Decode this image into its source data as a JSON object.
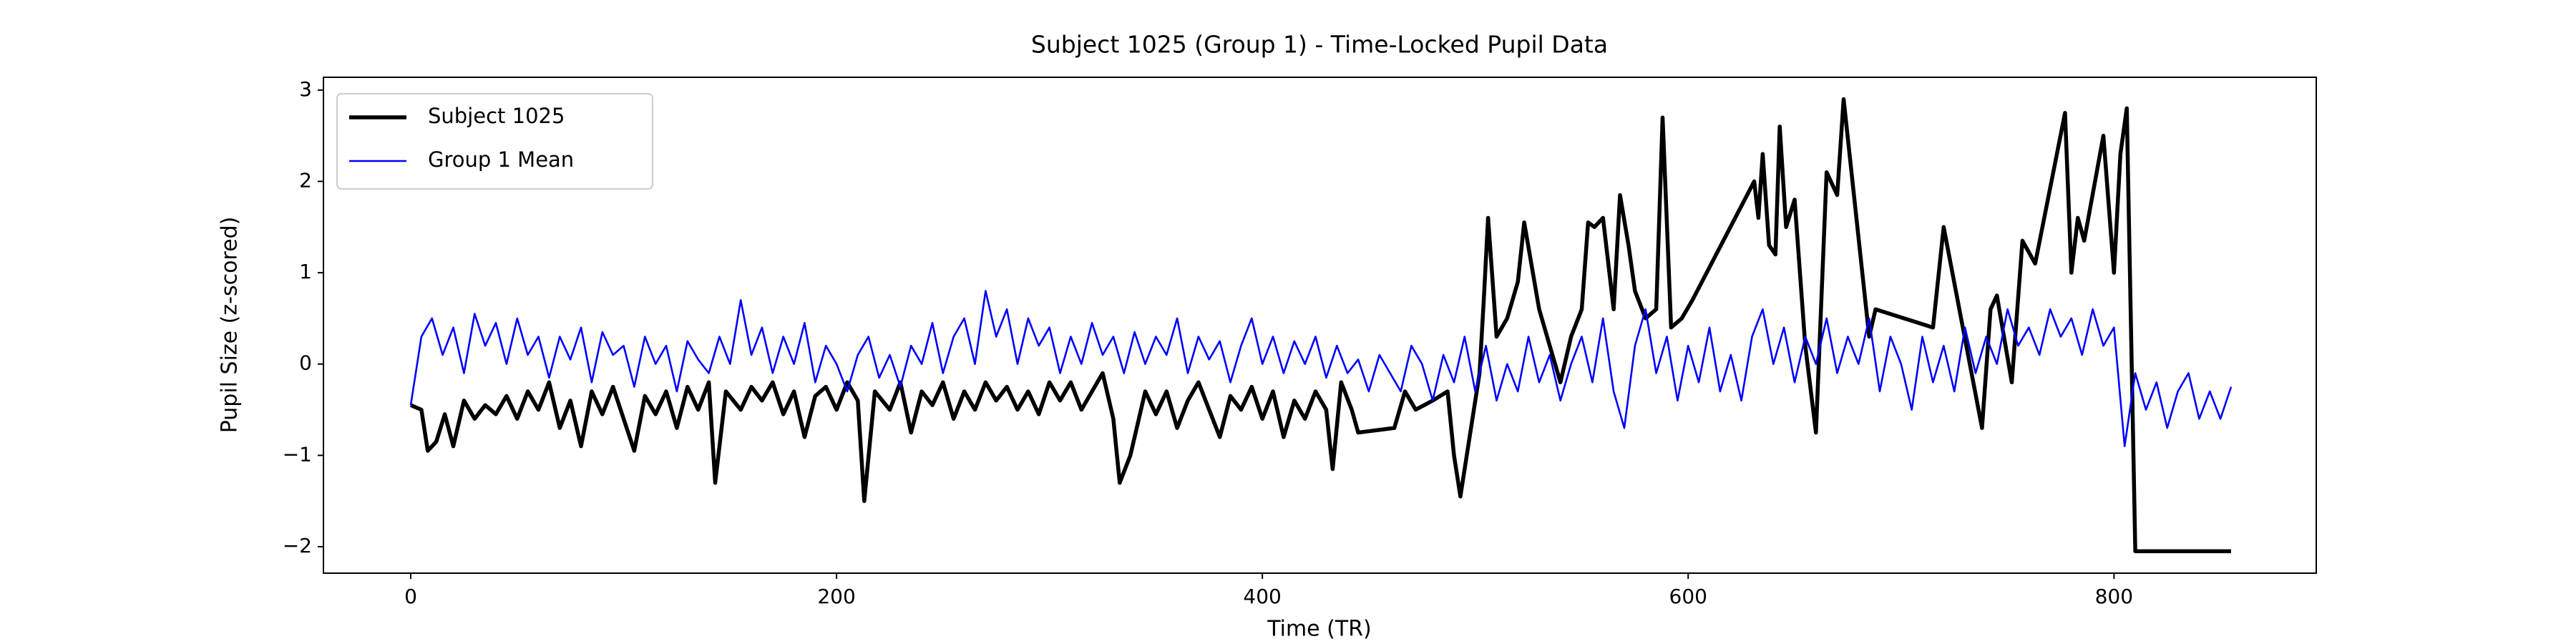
{
  "chart_data": {
    "type": "line",
    "title": "Subject 1025 (Group 1) - Time-Locked Pupil Data",
    "x_label": "Time (TR)",
    "y_label": "Pupil Size (z-scored)",
    "xlim": [
      -41,
      895
    ],
    "ylim": [
      -2.29,
      3.14
    ],
    "xticks": [
      0,
      200,
      400,
      600,
      800
    ],
    "yticks": [
      {
        "value": -2,
        "label": "−2"
      },
      {
        "value": -1,
        "label": "−1"
      },
      0,
      1,
      2,
      3
    ],
    "grid": false,
    "legend": "upper left",
    "series": [
      {
        "name": "Subject 1025",
        "color": "#000000",
        "x": [
          0,
          5,
          8,
          12,
          16,
          20,
          25,
          30,
          35,
          40,
          45,
          50,
          55,
          60,
          65,
          70,
          75,
          80,
          85,
          90,
          95,
          100,
          105,
          110,
          115,
          120,
          125,
          130,
          135,
          140,
          143,
          148,
          155,
          160,
          165,
          170,
          175,
          180,
          185,
          190,
          195,
          200,
          205,
          210,
          213,
          218,
          225,
          230,
          235,
          240,
          245,
          250,
          255,
          260,
          265,
          270,
          275,
          280,
          285,
          290,
          295,
          300,
          305,
          310,
          315,
          320,
          325,
          330,
          333,
          338,
          345,
          350,
          355,
          360,
          365,
          370,
          375,
          380,
          385,
          390,
          395,
          400,
          405,
          410,
          415,
          420,
          425,
          430,
          433,
          437,
          442,
          445,
          462,
          467,
          472,
          480,
          487,
          490,
          493,
          502,
          504,
          506,
          510,
          515,
          520,
          523,
          530,
          535,
          540,
          545,
          550,
          553,
          556,
          560,
          565,
          568,
          572,
          575,
          580,
          585,
          588,
          592,
          597,
          602,
          631,
          633,
          635,
          638,
          641,
          643,
          646,
          650,
          655,
          660,
          665,
          670,
          673,
          685,
          688,
          715,
          720,
          738,
          742,
          745,
          752,
          757,
          763,
          777,
          780,
          783,
          786,
          795,
          800,
          803,
          806,
          810,
          855
        ],
        "values": [
          -0.45,
          -0.5,
          -0.95,
          -0.85,
          -0.55,
          -0.9,
          -0.4,
          -0.6,
          -0.45,
          -0.55,
          -0.35,
          -0.6,
          -0.3,
          -0.5,
          -0.2,
          -0.7,
          -0.4,
          -0.9,
          -0.3,
          -0.55,
          -0.25,
          -0.6,
          -0.95,
          -0.35,
          -0.55,
          -0.3,
          -0.7,
          -0.25,
          -0.5,
          -0.2,
          -1.3,
          -0.3,
          -0.5,
          -0.25,
          -0.4,
          -0.2,
          -0.55,
          -0.3,
          -0.8,
          -0.35,
          -0.25,
          -0.5,
          -0.2,
          -0.4,
          -1.5,
          -0.3,
          -0.5,
          -0.2,
          -0.75,
          -0.3,
          -0.45,
          -0.2,
          -0.6,
          -0.3,
          -0.5,
          -0.2,
          -0.4,
          -0.25,
          -0.5,
          -0.3,
          -0.55,
          -0.2,
          -0.4,
          -0.2,
          -0.5,
          -0.3,
          -0.1,
          -0.6,
          -1.3,
          -1.0,
          -0.3,
          -0.55,
          -0.3,
          -0.7,
          -0.4,
          -0.2,
          -0.5,
          -0.8,
          -0.35,
          -0.5,
          -0.25,
          -0.6,
          -0.3,
          -0.8,
          -0.4,
          -0.6,
          -0.3,
          -0.5,
          -1.15,
          -0.2,
          -0.5,
          -0.75,
          -0.7,
          -0.3,
          -0.5,
          -0.4,
          -0.3,
          -1.0,
          -1.45,
          -0.1,
          0.7,
          1.6,
          0.3,
          0.5,
          0.9,
          1.55,
          0.6,
          0.2,
          -0.2,
          0.3,
          0.6,
          1.55,
          1.5,
          1.6,
          0.6,
          1.85,
          1.3,
          0.8,
          0.5,
          0.6,
          2.7,
          0.4,
          0.5,
          0.7,
          2.0,
          1.6,
          2.3,
          1.3,
          1.2,
          2.6,
          1.5,
          1.8,
          0.2,
          -0.75,
          2.1,
          1.85,
          2.9,
          0.3,
          0.6,
          0.4,
          1.5,
          -0.7,
          0.6,
          0.75,
          -0.2,
          1.35,
          1.1,
          2.75,
          1.0,
          1.6,
          1.35,
          2.5,
          1.0,
          2.3,
          2.8,
          -2.05,
          -2.05
        ]
      },
      {
        "name": "Group 1 Mean",
        "color": "#0000ff",
        "x": [
          0,
          5,
          10,
          15,
          20,
          25,
          30,
          35,
          40,
          45,
          50,
          55,
          60,
          65,
          70,
          75,
          80,
          85,
          90,
          95,
          100,
          105,
          110,
          115,
          120,
          125,
          130,
          135,
          140,
          145,
          150,
          155,
          160,
          165,
          170,
          175,
          180,
          185,
          190,
          195,
          200,
          205,
          210,
          215,
          220,
          225,
          230,
          235,
          240,
          245,
          250,
          255,
          260,
          265,
          270,
          275,
          280,
          285,
          290,
          295,
          300,
          305,
          310,
          315,
          320,
          325,
          330,
          335,
          340,
          345,
          350,
          355,
          360,
          365,
          370,
          375,
          380,
          385,
          390,
          395,
          400,
          405,
          410,
          415,
          420,
          425,
          430,
          435,
          440,
          445,
          450,
          455,
          460,
          465,
          470,
          475,
          480,
          485,
          490,
          495,
          500,
          505,
          510,
          515,
          520,
          525,
          530,
          535,
          540,
          545,
          550,
          555,
          560,
          565,
          570,
          575,
          580,
          585,
          590,
          595,
          600,
          605,
          610,
          615,
          620,
          625,
          630,
          635,
          640,
          645,
          650,
          655,
          660,
          665,
          670,
          675,
          680,
          685,
          690,
          695,
          700,
          705,
          710,
          715,
          720,
          725,
          730,
          735,
          740,
          745,
          750,
          755,
          760,
          765,
          770,
          775,
          780,
          785,
          790,
          795,
          800,
          805,
          810,
          815,
          820,
          825,
          830,
          835,
          840,
          845,
          850,
          855
        ],
        "values": [
          -0.45,
          0.3,
          0.5,
          0.1,
          0.4,
          -0.1,
          0.55,
          0.2,
          0.45,
          0.0,
          0.5,
          0.1,
          0.3,
          -0.15,
          0.3,
          0.05,
          0.4,
          -0.2,
          0.35,
          0.1,
          0.2,
          -0.25,
          0.3,
          0.0,
          0.2,
          -0.3,
          0.25,
          0.05,
          -0.1,
          0.3,
          0.0,
          0.7,
          0.1,
          0.4,
          -0.1,
          0.3,
          0.0,
          0.45,
          -0.2,
          0.2,
          0.0,
          -0.3,
          0.1,
          0.3,
          -0.15,
          0.1,
          -0.25,
          0.2,
          0.0,
          0.45,
          -0.1,
          0.3,
          0.5,
          0.0,
          0.8,
          0.3,
          0.6,
          0.0,
          0.5,
          0.2,
          0.4,
          -0.1,
          0.3,
          0.0,
          0.45,
          0.1,
          0.3,
          -0.1,
          0.35,
          0.0,
          0.3,
          0.1,
          0.5,
          -0.1,
          0.3,
          0.05,
          0.25,
          -0.2,
          0.2,
          0.5,
          0.0,
          0.3,
          -0.1,
          0.25,
          0.0,
          0.3,
          -0.15,
          0.2,
          -0.1,
          0.05,
          -0.3,
          0.1,
          -0.1,
          -0.3,
          0.2,
          0.0,
          -0.4,
          0.1,
          -0.2,
          0.3,
          -0.3,
          0.2,
          -0.4,
          0.0,
          -0.3,
          0.3,
          -0.2,
          0.1,
          -0.4,
          0.0,
          0.3,
          -0.2,
          0.5,
          -0.3,
          -0.7,
          0.2,
          0.6,
          -0.1,
          0.3,
          -0.4,
          0.2,
          -0.2,
          0.4,
          -0.3,
          0.1,
          -0.4,
          0.3,
          0.6,
          0.0,
          0.4,
          -0.2,
          0.3,
          0.0,
          0.5,
          -0.1,
          0.3,
          0.0,
          0.5,
          -0.3,
          0.3,
          0.0,
          -0.5,
          0.3,
          -0.2,
          0.2,
          -0.3,
          0.4,
          -0.1,
          0.3,
          0.0,
          0.6,
          0.2,
          0.4,
          0.1,
          0.6,
          0.3,
          0.5,
          0.1,
          0.6,
          0.2,
          0.4,
          -0.9,
          -0.1,
          -0.5,
          -0.2,
          -0.7,
          -0.3,
          -0.1,
          -0.6,
          -0.3,
          -0.6,
          -0.25
        ]
      }
    ]
  }
}
